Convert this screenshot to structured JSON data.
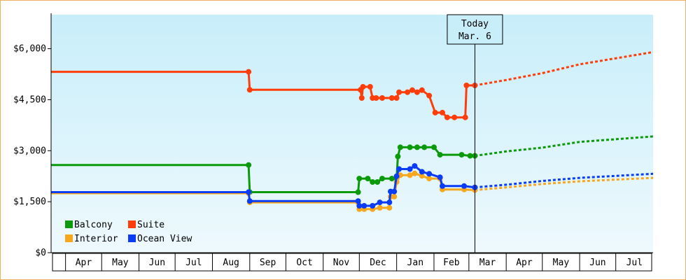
{
  "chart_data": {
    "type": "line",
    "ylim": [
      0,
      7000
    ],
    "y_ticks": [
      0,
      1500,
      3000,
      4500,
      6000
    ],
    "y_tick_labels": [
      "$0",
      "$1,500",
      "$3,000",
      "$4,500",
      "$6,000"
    ],
    "x_range": [
      "2023-03-20",
      "2024-08-01"
    ],
    "months": [
      {
        "label": "Apr",
        "start": "2023-04-01"
      },
      {
        "label": "May",
        "start": "2023-05-01"
      },
      {
        "label": "Jun",
        "start": "2023-06-01"
      },
      {
        "label": "Jul",
        "start": "2023-07-01"
      },
      {
        "label": "Aug",
        "start": "2023-08-01"
      },
      {
        "label": "Sep",
        "start": "2023-09-01"
      },
      {
        "label": "Oct",
        "start": "2023-10-01"
      },
      {
        "label": "Nov",
        "start": "2023-11-01"
      },
      {
        "label": "Dec",
        "start": "2023-12-01"
      },
      {
        "label": "Jan",
        "start": "2024-01-01"
      },
      {
        "label": "Feb",
        "start": "2024-02-01"
      },
      {
        "label": "Mar",
        "start": "2024-03-01"
      },
      {
        "label": "Apr",
        "start": "2024-04-01"
      },
      {
        "label": "May",
        "start": "2024-05-01"
      },
      {
        "label": "Jun",
        "start": "2024-06-01"
      },
      {
        "label": "Jul",
        "start": "2024-07-01"
      }
    ],
    "today": {
      "date": "2024-03-06",
      "line1": "Today",
      "line2": "Mar. 6"
    },
    "legend_position": "bottom-left",
    "grid": false,
    "background_gradient": [
      "#c8eefa",
      "#eef9fd"
    ],
    "series": [
      {
        "name": "Suite",
        "color": "#ff3d0a",
        "points": [
          [
            "2023-03-20",
            5320
          ],
          [
            "2023-08-31",
            5320
          ],
          [
            "2023-09-01",
            4790
          ],
          [
            "2023-12-02",
            4790
          ],
          [
            "2023-12-03",
            4550
          ],
          [
            "2023-12-04",
            4880
          ],
          [
            "2023-12-10",
            4880
          ],
          [
            "2023-12-12",
            4550
          ],
          [
            "2023-12-15",
            4550
          ],
          [
            "2023-12-20",
            4550
          ],
          [
            "2023-12-28",
            4550
          ],
          [
            "2024-01-01",
            4550
          ],
          [
            "2024-01-03",
            4720
          ],
          [
            "2024-01-10",
            4720
          ],
          [
            "2024-01-14",
            4780
          ],
          [
            "2024-01-18",
            4720
          ],
          [
            "2024-01-22",
            4780
          ],
          [
            "2024-01-28",
            4620
          ],
          [
            "2024-02-02",
            4120
          ],
          [
            "2024-02-08",
            4120
          ],
          [
            "2024-02-12",
            3980
          ],
          [
            "2024-02-18",
            3980
          ],
          [
            "2024-02-27",
            3980
          ],
          [
            "2024-02-28",
            4920
          ],
          [
            "2024-03-06",
            4920
          ]
        ],
        "forecast": [
          [
            "2024-03-06",
            4920
          ],
          [
            "2024-04-01",
            5080
          ],
          [
            "2024-05-01",
            5280
          ],
          [
            "2024-06-01",
            5540
          ],
          [
            "2024-08-01",
            5900
          ]
        ]
      },
      {
        "name": "Balcony",
        "color": "#0a9a0a",
        "points": [
          [
            "2023-03-20",
            2580
          ],
          [
            "2023-08-31",
            2580
          ],
          [
            "2023-09-01",
            1780
          ],
          [
            "2023-11-30",
            1780
          ],
          [
            "2023-12-01",
            2180
          ],
          [
            "2023-12-08",
            2180
          ],
          [
            "2023-12-12",
            2080
          ],
          [
            "2023-12-16",
            2080
          ],
          [
            "2023-12-20",
            2180
          ],
          [
            "2023-12-28",
            2180
          ],
          [
            "2024-01-01",
            2180
          ],
          [
            "2024-01-02",
            2830
          ],
          [
            "2024-01-04",
            3100
          ],
          [
            "2024-01-12",
            3100
          ],
          [
            "2024-01-18",
            3100
          ],
          [
            "2024-01-24",
            3100
          ],
          [
            "2024-02-01",
            3100
          ],
          [
            "2024-02-06",
            2880
          ],
          [
            "2024-02-24",
            2880
          ],
          [
            "2024-03-02",
            2850
          ],
          [
            "2024-03-06",
            2850
          ]
        ],
        "forecast": [
          [
            "2024-03-06",
            2850
          ],
          [
            "2024-04-01",
            2980
          ],
          [
            "2024-05-01",
            3090
          ],
          [
            "2024-06-01",
            3260
          ],
          [
            "2024-08-01",
            3420
          ]
        ]
      },
      {
        "name": "Interior",
        "color": "#f5a81e",
        "points": [
          [
            "2023-03-20",
            1750
          ],
          [
            "2023-08-31",
            1750
          ],
          [
            "2023-09-01",
            1480
          ],
          [
            "2023-11-30",
            1480
          ],
          [
            "2023-12-01",
            1280
          ],
          [
            "2023-12-05",
            1280
          ],
          [
            "2023-12-12",
            1280
          ],
          [
            "2023-12-18",
            1320
          ],
          [
            "2023-12-26",
            1320
          ],
          [
            "2023-12-27",
            1650
          ],
          [
            "2023-12-30",
            1650
          ],
          [
            "2024-01-01",
            2080
          ],
          [
            "2024-01-04",
            2280
          ],
          [
            "2024-01-12",
            2280
          ],
          [
            "2024-01-16",
            2330
          ],
          [
            "2024-01-22",
            2260
          ],
          [
            "2024-01-28",
            2180
          ],
          [
            "2024-02-06",
            2180
          ],
          [
            "2024-02-08",
            1860
          ],
          [
            "2024-02-26",
            1860
          ],
          [
            "2024-03-06",
            1840
          ]
        ],
        "forecast": [
          [
            "2024-03-06",
            1840
          ],
          [
            "2024-04-01",
            1920
          ],
          [
            "2024-05-01",
            2020
          ],
          [
            "2024-06-01",
            2100
          ],
          [
            "2024-08-01",
            2200
          ]
        ]
      },
      {
        "name": "Ocean View",
        "color": "#0a3cf5",
        "points": [
          [
            "2023-03-20",
            1780
          ],
          [
            "2023-08-31",
            1780
          ],
          [
            "2023-09-01",
            1520
          ],
          [
            "2023-11-30",
            1520
          ],
          [
            "2023-12-01",
            1380
          ],
          [
            "2023-12-05",
            1380
          ],
          [
            "2023-12-12",
            1380
          ],
          [
            "2023-12-18",
            1480
          ],
          [
            "2023-12-26",
            1480
          ],
          [
            "2023-12-27",
            1800
          ],
          [
            "2023-12-30",
            1800
          ],
          [
            "2024-01-01",
            2250
          ],
          [
            "2024-01-03",
            2460
          ],
          [
            "2024-01-12",
            2460
          ],
          [
            "2024-01-16",
            2550
          ],
          [
            "2024-01-22",
            2380
          ],
          [
            "2024-01-28",
            2320
          ],
          [
            "2024-02-06",
            2220
          ],
          [
            "2024-02-08",
            1960
          ],
          [
            "2024-02-26",
            1960
          ],
          [
            "2024-03-06",
            1920
          ]
        ],
        "forecast": [
          [
            "2024-03-06",
            1920
          ],
          [
            "2024-04-01",
            2000
          ],
          [
            "2024-05-01",
            2110
          ],
          [
            "2024-06-01",
            2200
          ],
          [
            "2024-08-01",
            2320
          ]
        ]
      }
    ]
  }
}
